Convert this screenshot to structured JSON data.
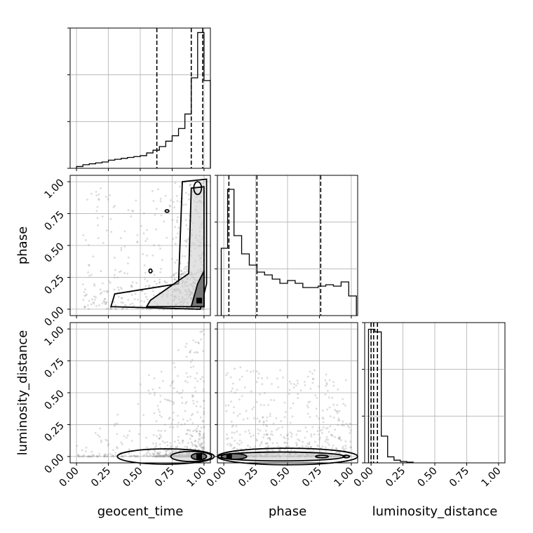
{
  "chart_data": {
    "type": "corner",
    "parameters": [
      "geocent_time",
      "phase",
      "luminosity_distance"
    ],
    "colors": {
      "line": "#000000",
      "scatter": "#9a9a9a",
      "grid": "#b0b0b0"
    },
    "axis_range": [
      -0.05,
      1.05
    ],
    "tick_labels": [
      "0.00",
      "0.25",
      "0.50",
      "0.75",
      "1.00"
    ],
    "grid": true,
    "histograms": {
      "geocent_time": {
        "bins": [
          0.0,
          0.05,
          0.1,
          0.15,
          0.2,
          0.25,
          0.3,
          0.35,
          0.4,
          0.45,
          0.5,
          0.55,
          0.6,
          0.65,
          0.7,
          0.75,
          0.8,
          0.85,
          0.9,
          0.95,
          1.0,
          1.05
        ],
        "counts": [
          0.02,
          0.04,
          0.05,
          0.06,
          0.07,
          0.09,
          0.1,
          0.11,
          0.12,
          0.13,
          0.14,
          0.17,
          0.2,
          0.24,
          0.3,
          0.36,
          0.44,
          0.6,
          1.0,
          1.5,
          0.97
        ],
        "ymax": 1.55,
        "quantiles": [
          0.63,
          0.9,
          0.99
        ]
      },
      "phase": {
        "bins": [
          -0.02,
          0.03,
          0.08,
          0.14,
          0.2,
          0.26,
          0.32,
          0.38,
          0.44,
          0.5,
          0.56,
          0.62,
          0.68,
          0.74,
          0.8,
          0.86,
          0.92,
          0.98,
          1.04
        ],
        "counts": [
          0.96,
          1.8,
          1.14,
          0.88,
          0.72,
          0.62,
          0.58,
          0.52,
          0.46,
          0.5,
          0.46,
          0.4,
          0.4,
          0.42,
          0.44,
          0.42,
          0.48,
          0.28
        ],
        "ymax": 2.0,
        "quantiles": [
          0.04,
          0.26,
          0.76
        ]
      },
      "luminosity_distance": {
        "bins": [
          -0.02,
          0.03,
          0.08,
          0.13,
          0.18,
          0.23,
          0.28,
          0.33
        ],
        "counts": [
          2.0,
          1.96,
          0.4,
          0.09,
          0.04,
          0.02,
          0.01
        ],
        "ymax": 2.1,
        "quantiles": [
          0.0,
          0.02,
          0.05
        ]
      }
    },
    "scatter_density": {
      "phase_vs_geocent_time": "posterior concentrated near geocent_time≈0.97, spread in phase; secondary mass at low phase",
      "luminosity_distance_vs_geocent_time": "concentrated at luminosity_distance≈0, geocent_time≈0.97",
      "luminosity_distance_vs_phase": "concentrated at luminosity_distance≈0 across phase, peak near phase≈0.05"
    }
  }
}
